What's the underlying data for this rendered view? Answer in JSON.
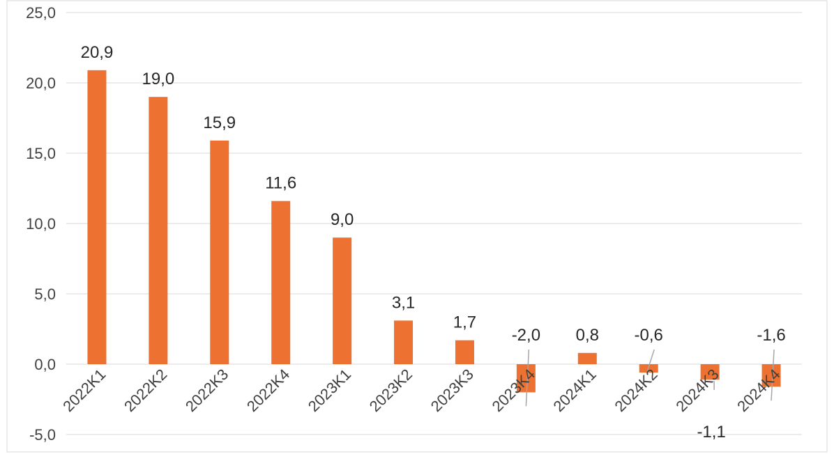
{
  "chart_data": {
    "type": "bar",
    "title": "",
    "xlabel": "",
    "ylabel": "",
    "categories": [
      "2022K1",
      "2022K2",
      "2022K3",
      "2022K4",
      "2023K1",
      "2023K2",
      "2023K3",
      "2023K4",
      "2024K1",
      "2024K2",
      "2024K3",
      "2024K4"
    ],
    "series": [
      {
        "values": [
          20.9,
          19.0,
          15.9,
          11.6,
          9.0,
          3.1,
          1.7,
          -2.0,
          0.8,
          -0.6,
          -1.1,
          -1.6
        ]
      }
    ],
    "data_labels": [
      "20,9",
      "19,0",
      "15,9",
      "11,6",
      "9,0",
      "3,1",
      "1,7",
      "-2,0",
      "0,8",
      "-0,6",
      "-1,1",
      "-1,6"
    ],
    "ylim": [
      -5,
      25
    ],
    "yticks": [
      -5,
      0,
      5,
      10,
      15,
      20,
      25
    ],
    "ytick_labels": [
      "-5,0",
      "0,0",
      "5,0",
      "10,0",
      "15,0",
      "20,0",
      "25,0"
    ],
    "grid": true,
    "legend": "none",
    "colors": {
      "bar": "#ED7130",
      "grid": "#D9D9D9",
      "border": "#D9D9D9",
      "leader": "#A6A6A6"
    }
  }
}
